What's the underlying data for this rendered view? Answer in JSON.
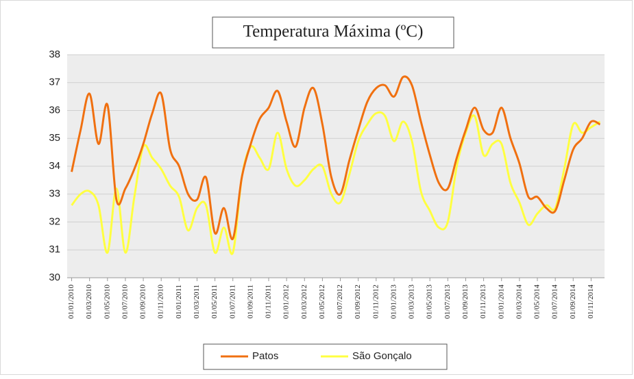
{
  "chart_data": {
    "type": "line",
    "title": "Temperatura Máxima (ºC)",
    "categories": [
      "01/01/2010",
      null,
      "01/03/2010",
      null,
      "01/05/2010",
      null,
      "01/07/2010",
      null,
      "01/09/2010",
      null,
      "01/11/2010",
      null,
      "01/01/2011",
      null,
      "01/03/2011",
      null,
      "01/05/2011",
      null,
      "01/07/2011",
      null,
      "01/09/2011",
      null,
      "01/11/2011",
      null,
      "01/01/2012",
      null,
      "01/03/2012",
      null,
      "01/05/2012",
      null,
      "01/07/2012",
      null,
      "01/09/2012",
      null,
      "01/11/2012",
      null,
      "01/01/2013",
      null,
      "01/03/2013",
      null,
      "01/05/2013",
      null,
      "01/07/2013",
      null,
      "01/09/2013",
      null,
      "01/11/2013",
      null,
      "01/01/2014",
      null,
      "01/03/2014",
      null,
      "01/05/2014",
      null,
      "01/07/2014",
      null,
      "01/09/2014",
      null,
      "01/11/2014",
      null
    ],
    "series": [
      {
        "name": "Patos",
        "color": "#f07010",
        "values": [
          33.8,
          35.3,
          36.6,
          34.8,
          36.2,
          32.8,
          33.2,
          33.9,
          34.8,
          35.9,
          36.6,
          34.6,
          34.0,
          33.0,
          32.8,
          33.6,
          31.6,
          32.5,
          31.4,
          33.6,
          34.8,
          35.7,
          36.1,
          36.7,
          35.6,
          34.7,
          36.1,
          36.8,
          35.5,
          33.6,
          33.0,
          34.2,
          35.3,
          36.3,
          36.8,
          36.9,
          36.5,
          37.2,
          36.9,
          35.6,
          34.4,
          33.4,
          33.2,
          34.3,
          35.3,
          36.1,
          35.3,
          35.2,
          36.1,
          35.0,
          34.1,
          32.9,
          32.9,
          32.5,
          32.4,
          33.5,
          34.6,
          35.0,
          35.6,
          35.5
        ]
      },
      {
        "name": "São Gonçalo",
        "color": "#ffff40",
        "values": [
          32.6,
          33.0,
          33.1,
          32.6,
          30.9,
          33.2,
          30.9,
          32.9,
          34.7,
          34.3,
          33.9,
          33.3,
          32.9,
          31.7,
          32.5,
          32.6,
          30.9,
          31.8,
          30.9,
          33.6,
          34.7,
          34.3,
          33.9,
          35.2,
          33.9,
          33.3,
          33.5,
          33.9,
          34.0,
          33.0,
          32.7,
          33.7,
          34.9,
          35.5,
          35.9,
          35.8,
          34.9,
          35.6,
          34.9,
          33.1,
          32.4,
          31.8,
          32.0,
          34.0,
          35.2,
          35.8,
          34.4,
          34.8,
          34.8,
          33.4,
          32.7,
          31.9,
          32.3,
          32.6,
          32.5,
          33.9,
          35.5,
          35.2,
          35.4,
          35.6
        ]
      }
    ],
    "ylim": [
      30,
      38
    ],
    "yticks": [
      30,
      31,
      32,
      33,
      34,
      35,
      36,
      37,
      38
    ],
    "grid": true,
    "legend": "bottom"
  }
}
